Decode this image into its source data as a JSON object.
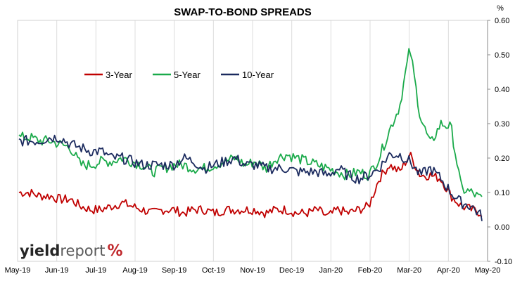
{
  "chart_data": {
    "type": "line",
    "title": "SWAP-TO-BOND SPREADS",
    "unit_label": "%",
    "x_ticks": [
      "May-19",
      "Jun-19",
      "Jul-19",
      "Aug-19",
      "Sep-19",
      "Oct-19",
      "Nov-19",
      "Dec-19",
      "Jan-20",
      "Feb-20",
      "Mar-20",
      "Apr-20",
      "May-20"
    ],
    "y_ticks": [
      "0.60",
      "0.50",
      "0.40",
      "0.30",
      "0.20",
      "0.10",
      "0.00",
      "-0.10"
    ],
    "ylim": [
      -0.1,
      0.6
    ],
    "grid": "vertical",
    "legend_position": "top-left",
    "series": [
      {
        "name": "3-Year",
        "color": "#c00000",
        "values": [
          0.1,
          0.1,
          0.09,
          0.09,
          0.08,
          0.08,
          0.06,
          0.05,
          0.05,
          0.06,
          0.07,
          0.06,
          0.05,
          0.04,
          0.05,
          0.05,
          0.04,
          0.05,
          0.05,
          0.04,
          0.05,
          0.05,
          0.05,
          0.05,
          0.04,
          0.05,
          0.05,
          0.04,
          0.04,
          0.05,
          0.03,
          0.05,
          0.04,
          0.05,
          0.06,
          0.14,
          0.18,
          0.16,
          0.21,
          0.15,
          0.15,
          0.14,
          0.09,
          0.06,
          0.05,
          0.04
        ]
      },
      {
        "name": "5-Year",
        "color": "#1aaa4a",
        "values": [
          0.26,
          0.26,
          0.25,
          0.25,
          0.24,
          0.23,
          0.18,
          0.18,
          0.19,
          0.19,
          0.2,
          0.19,
          0.18,
          0.16,
          0.17,
          0.18,
          0.18,
          0.17,
          0.17,
          0.18,
          0.19,
          0.2,
          0.18,
          0.19,
          0.17,
          0.2,
          0.21,
          0.2,
          0.19,
          0.18,
          0.17,
          0.16,
          0.15,
          0.16,
          0.15,
          0.2,
          0.28,
          0.35,
          0.52,
          0.32,
          0.24,
          0.3,
          0.29,
          0.11,
          0.1,
          0.08
        ]
      },
      {
        "name": "10-Year",
        "color": "#1b2a5e",
        "values": [
          0.25,
          0.25,
          0.25,
          0.26,
          0.26,
          0.24,
          0.23,
          0.22,
          0.22,
          0.2,
          0.2,
          0.19,
          0.18,
          0.18,
          0.18,
          0.18,
          0.2,
          0.19,
          0.17,
          0.18,
          0.19,
          0.2,
          0.18,
          0.18,
          0.17,
          0.17,
          0.17,
          0.16,
          0.16,
          0.16,
          0.15,
          0.17,
          0.15,
          0.14,
          0.15,
          0.17,
          0.21,
          0.21,
          0.19,
          0.15,
          0.17,
          0.14,
          0.1,
          0.07,
          0.06,
          0.03
        ]
      }
    ]
  },
  "logo": {
    "part1": "yield",
    "part2": "report",
    "part3": "%"
  }
}
